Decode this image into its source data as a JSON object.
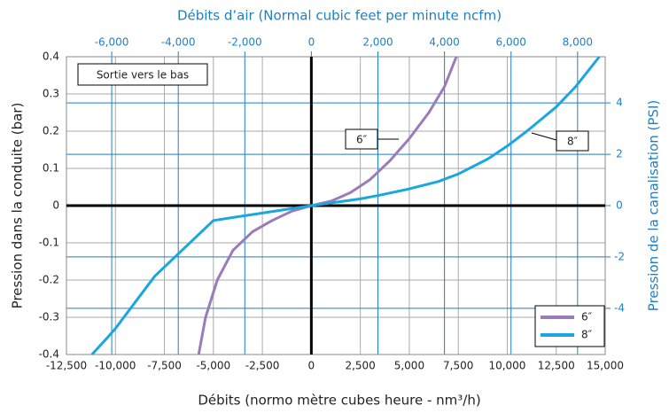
{
  "chart_data": {
    "type": "line",
    "title": "Débits d’air (Normal cubic feet per minute ncfm)",
    "xlabel": "Débits (normo mètre cubes heure - nm³/h)",
    "ylabel": "Pression dans la conduite (bar)",
    "y2label": "Pression de la canalisation (PSI)",
    "annotations": [
      "Sortie vers le bas",
      "6″",
      "8″"
    ],
    "xlim": [
      -12500,
      15000
    ],
    "xticks": [
      {
        "value": -12500,
        "label": "-12,500"
      },
      {
        "value": -10000,
        "label": "-10,000"
      },
      {
        "value": -7500,
        "label": "-7,500"
      },
      {
        "value": -5000,
        "label": "-5,000"
      },
      {
        "value": -2500,
        "label": "-2,500"
      },
      0,
      {
        "value": 2500,
        "label": "2,500"
      },
      {
        "value": 5000,
        "label": "5,000"
      },
      {
        "value": 7500,
        "label": "7,500"
      },
      {
        "value": 10000,
        "label": "10,000"
      },
      {
        "value": 12500,
        "label": "12,500"
      },
      {
        "value": 15000,
        "label": "15,000"
      }
    ],
    "x2lim": [
      -7360,
      8830
    ],
    "x2ticks": [
      {
        "value": -6000,
        "label": "-6,000"
      },
      {
        "value": -4000,
        "label": "-4,000"
      },
      {
        "value": -2000,
        "label": "-2,000"
      },
      0,
      {
        "value": 2000,
        "label": "2,000"
      },
      {
        "value": 4000,
        "label": "4,000"
      },
      {
        "value": 6000,
        "label": "6,000"
      },
      {
        "value": 8000,
        "label": "8,000"
      }
    ],
    "ylim": [
      -0.4,
      0.4
    ],
    "yticks": [
      -0.4,
      -0.3,
      -0.2,
      -0.1,
      0,
      0.1,
      0.2,
      0.3,
      0.4
    ],
    "y2lim": [
      -5.8,
      5.8
    ],
    "y2ticks": [
      -4,
      -2,
      0,
      2,
      4
    ],
    "grid": true,
    "legend": "lower right",
    "series": [
      {
        "name": "6″",
        "color": "#9b7bb8",
        "x": [
          -5750,
          -5400,
          -4800,
          -4000,
          -3000,
          -2000,
          -1000,
          0,
          1000,
          2000,
          3000,
          4000,
          5000,
          6000,
          6800,
          7400
        ],
        "values": [
          -0.4,
          -0.3,
          -0.2,
          -0.12,
          -0.07,
          -0.04,
          -0.015,
          0,
          0.012,
          0.035,
          0.07,
          0.12,
          0.18,
          0.25,
          0.32,
          0.4
        ]
      },
      {
        "name": "8″",
        "color": "#1aa7e0",
        "x": [
          -11200,
          -10500,
          -10000,
          -9000,
          -8000,
          -7500,
          -6000,
          -5000,
          -2500,
          0,
          2500,
          3500,
          5000,
          6500,
          7500,
          9000,
          10000,
          11000,
          12500,
          13500,
          14700
        ],
        "values": [
          -0.4,
          -0.36,
          -0.33,
          -0.26,
          -0.19,
          -0.165,
          -0.09,
          -0.04,
          -0.02,
          0,
          0.018,
          0.028,
          0.045,
          0.065,
          0.085,
          0.125,
          0.16,
          0.2,
          0.265,
          0.32,
          0.4
        ]
      }
    ]
  }
}
